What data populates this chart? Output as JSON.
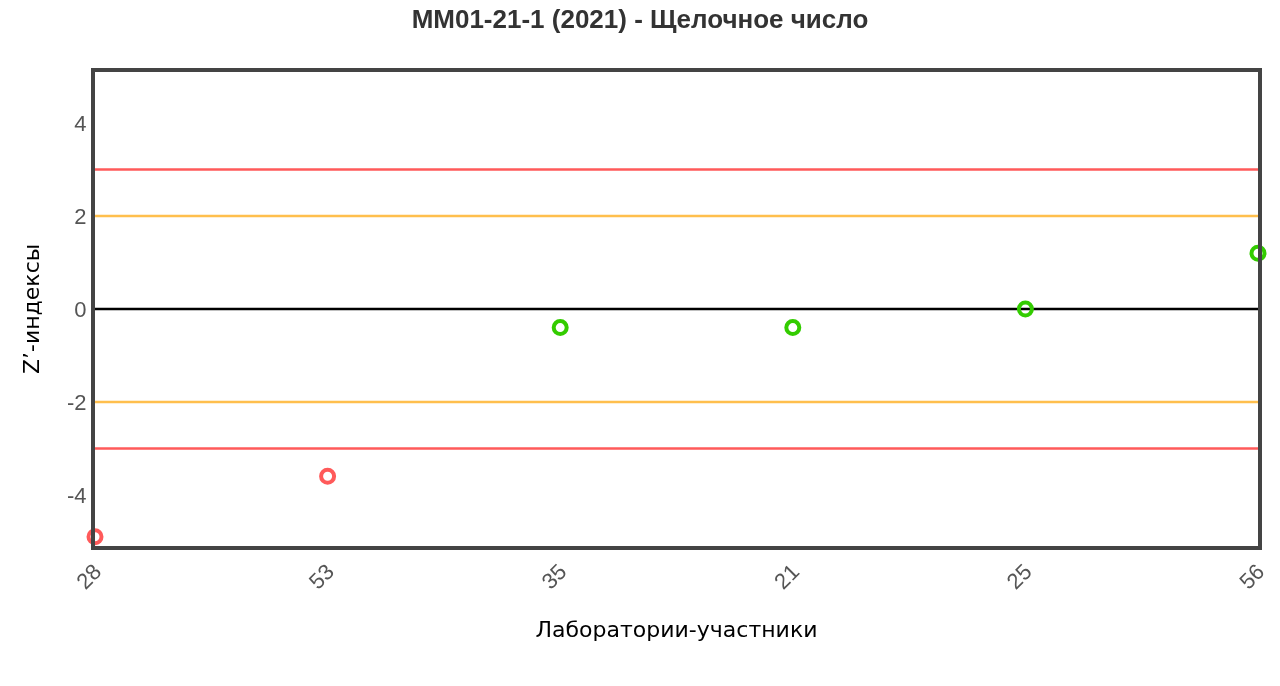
{
  "chart_data": {
    "type": "scatter",
    "title": "ММ01-21-1 (2021) - Щелочное число",
    "xlabel": "Лаборатории-участники",
    "ylabel": "Z’-индексы",
    "categories": [
      "28",
      "53",
      "35",
      "21",
      "25",
      "56"
    ],
    "values": [
      -4.9,
      -3.6,
      -0.4,
      -0.4,
      0.0,
      1.2
    ],
    "colors": [
      "#ff5a5a",
      "#ff5a5a",
      "#33cc00",
      "#33cc00",
      "#33cc00",
      "#33cc00"
    ],
    "marker": "circle",
    "ylim": [
      -5.1,
      5.1
    ],
    "yticks": [
      -4,
      -2,
      0,
      2,
      4
    ],
    "grid": false,
    "ref_lines": [
      {
        "axis": "y",
        "value": 3,
        "color": "#ff5a5a"
      },
      {
        "axis": "y",
        "value": 2,
        "color": "#ffbf4d"
      },
      {
        "axis": "y",
        "value": 0,
        "color": "#000000"
      },
      {
        "axis": "y",
        "value": -2,
        "color": "#ffbf4d"
      },
      {
        "axis": "y",
        "value": -3,
        "color": "#ff5a5a"
      }
    ]
  }
}
